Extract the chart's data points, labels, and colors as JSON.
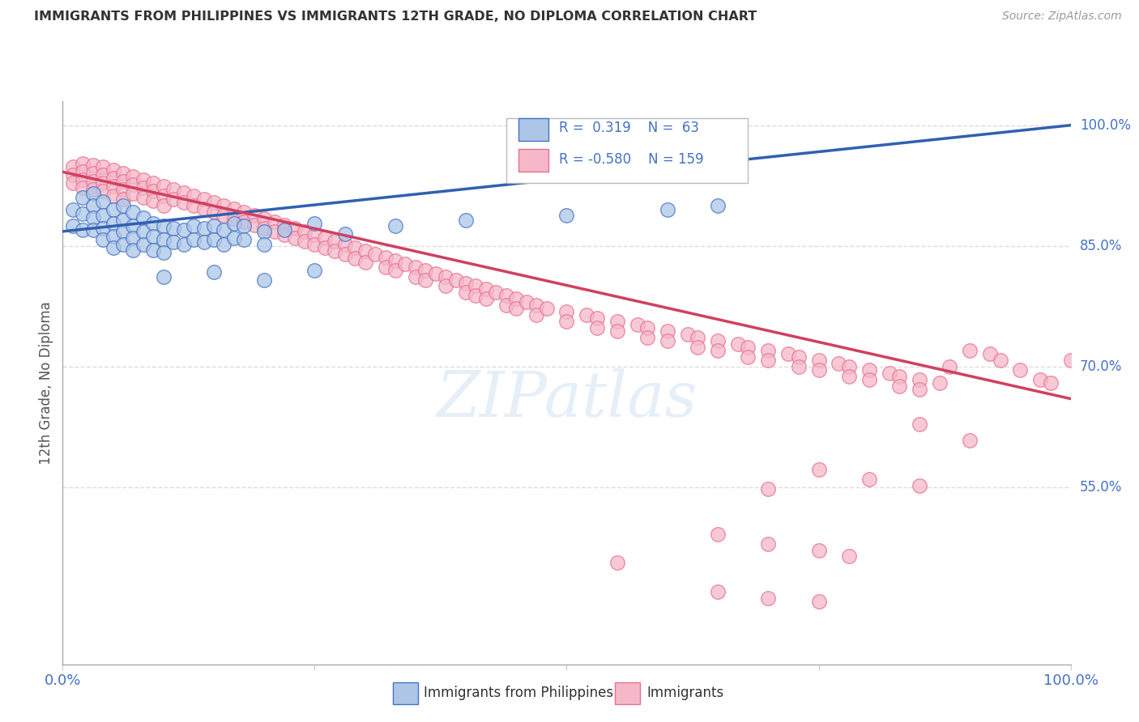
{
  "title": "IMMIGRANTS FROM PHILIPPINES VS IMMIGRANTS 12TH GRADE, NO DIPLOMA CORRELATION CHART",
  "source": "Source: ZipAtlas.com",
  "ylabel": "12th Grade, No Diploma",
  "xlim": [
    0.0,
    1.0
  ],
  "ylim": [
    0.33,
    1.03
  ],
  "right_yticks": [
    1.0,
    0.85,
    0.7,
    0.55
  ],
  "right_ytick_labels": [
    "100.0%",
    "85.0%",
    "70.0%",
    "55.0%"
  ],
  "legend_r_blue": "0.319",
  "legend_n_blue": "63",
  "legend_r_pink": "-0.580",
  "legend_n_pink": "159",
  "blue_color": "#adc6e8",
  "blue_edge_color": "#4472c4",
  "blue_line_color": "#3060b0",
  "pink_color": "#f5b8c8",
  "pink_edge_color": "#e87090",
  "pink_line_color": "#d04060",
  "background_color": "#ffffff",
  "grid_color": "#dddddd",
  "blue_scatter": [
    [
      0.01,
      0.895
    ],
    [
      0.01,
      0.875
    ],
    [
      0.02,
      0.91
    ],
    [
      0.02,
      0.89
    ],
    [
      0.02,
      0.87
    ],
    [
      0.03,
      0.915
    ],
    [
      0.03,
      0.9
    ],
    [
      0.03,
      0.885
    ],
    [
      0.03,
      0.87
    ],
    [
      0.04,
      0.905
    ],
    [
      0.04,
      0.888
    ],
    [
      0.04,
      0.872
    ],
    [
      0.04,
      0.858
    ],
    [
      0.05,
      0.895
    ],
    [
      0.05,
      0.878
    ],
    [
      0.05,
      0.862
    ],
    [
      0.05,
      0.848
    ],
    [
      0.06,
      0.9
    ],
    [
      0.06,
      0.882
    ],
    [
      0.06,
      0.868
    ],
    [
      0.06,
      0.852
    ],
    [
      0.07,
      0.892
    ],
    [
      0.07,
      0.875
    ],
    [
      0.07,
      0.86
    ],
    [
      0.07,
      0.845
    ],
    [
      0.08,
      0.885
    ],
    [
      0.08,
      0.868
    ],
    [
      0.08,
      0.852
    ],
    [
      0.09,
      0.878
    ],
    [
      0.09,
      0.862
    ],
    [
      0.09,
      0.845
    ],
    [
      0.1,
      0.875
    ],
    [
      0.1,
      0.858
    ],
    [
      0.1,
      0.842
    ],
    [
      0.11,
      0.872
    ],
    [
      0.11,
      0.855
    ],
    [
      0.12,
      0.87
    ],
    [
      0.12,
      0.852
    ],
    [
      0.13,
      0.875
    ],
    [
      0.13,
      0.858
    ],
    [
      0.14,
      0.872
    ],
    [
      0.14,
      0.855
    ],
    [
      0.15,
      0.875
    ],
    [
      0.15,
      0.858
    ],
    [
      0.16,
      0.87
    ],
    [
      0.16,
      0.852
    ],
    [
      0.17,
      0.878
    ],
    [
      0.17,
      0.86
    ],
    [
      0.18,
      0.875
    ],
    [
      0.18,
      0.858
    ],
    [
      0.2,
      0.868
    ],
    [
      0.2,
      0.852
    ],
    [
      0.22,
      0.87
    ],
    [
      0.25,
      0.878
    ],
    [
      0.28,
      0.865
    ],
    [
      0.33,
      0.875
    ],
    [
      0.4,
      0.882
    ],
    [
      0.5,
      0.888
    ],
    [
      0.6,
      0.895
    ],
    [
      0.65,
      0.9
    ],
    [
      0.15,
      0.818
    ],
    [
      0.2,
      0.808
    ],
    [
      0.1,
      0.812
    ],
    [
      0.25,
      0.82
    ]
  ],
  "pink_scatter": [
    [
      0.01,
      0.948
    ],
    [
      0.01,
      0.938
    ],
    [
      0.01,
      0.928
    ],
    [
      0.02,
      0.952
    ],
    [
      0.02,
      0.942
    ],
    [
      0.02,
      0.932
    ],
    [
      0.02,
      0.922
    ],
    [
      0.03,
      0.95
    ],
    [
      0.03,
      0.94
    ],
    [
      0.03,
      0.93
    ],
    [
      0.03,
      0.92
    ],
    [
      0.04,
      0.948
    ],
    [
      0.04,
      0.938
    ],
    [
      0.04,
      0.928
    ],
    [
      0.04,
      0.918
    ],
    [
      0.05,
      0.944
    ],
    [
      0.05,
      0.934
    ],
    [
      0.05,
      0.924
    ],
    [
      0.05,
      0.912
    ],
    [
      0.06,
      0.94
    ],
    [
      0.06,
      0.93
    ],
    [
      0.06,
      0.92
    ],
    [
      0.06,
      0.908
    ],
    [
      0.07,
      0.936
    ],
    [
      0.07,
      0.926
    ],
    [
      0.07,
      0.915
    ],
    [
      0.08,
      0.932
    ],
    [
      0.08,
      0.922
    ],
    [
      0.08,
      0.91
    ],
    [
      0.09,
      0.928
    ],
    [
      0.09,
      0.918
    ],
    [
      0.09,
      0.906
    ],
    [
      0.1,
      0.924
    ],
    [
      0.1,
      0.912
    ],
    [
      0.1,
      0.9
    ],
    [
      0.11,
      0.92
    ],
    [
      0.11,
      0.908
    ],
    [
      0.12,
      0.916
    ],
    [
      0.12,
      0.904
    ],
    [
      0.13,
      0.912
    ],
    [
      0.13,
      0.9
    ],
    [
      0.14,
      0.908
    ],
    [
      0.14,
      0.896
    ],
    [
      0.15,
      0.904
    ],
    [
      0.15,
      0.892
    ],
    [
      0.16,
      0.9
    ],
    [
      0.16,
      0.888
    ],
    [
      0.17,
      0.896
    ],
    [
      0.17,
      0.884
    ],
    [
      0.18,
      0.892
    ],
    [
      0.18,
      0.88
    ],
    [
      0.19,
      0.888
    ],
    [
      0.19,
      0.876
    ],
    [
      0.2,
      0.884
    ],
    [
      0.2,
      0.872
    ],
    [
      0.21,
      0.88
    ],
    [
      0.21,
      0.868
    ],
    [
      0.22,
      0.876
    ],
    [
      0.22,
      0.864
    ],
    [
      0.23,
      0.872
    ],
    [
      0.23,
      0.86
    ],
    [
      0.24,
      0.868
    ],
    [
      0.24,
      0.856
    ],
    [
      0.25,
      0.864
    ],
    [
      0.25,
      0.852
    ],
    [
      0.26,
      0.86
    ],
    [
      0.26,
      0.848
    ],
    [
      0.27,
      0.856
    ],
    [
      0.27,
      0.844
    ],
    [
      0.28,
      0.852
    ],
    [
      0.28,
      0.84
    ],
    [
      0.29,
      0.848
    ],
    [
      0.29,
      0.835
    ],
    [
      0.3,
      0.844
    ],
    [
      0.3,
      0.83
    ],
    [
      0.31,
      0.84
    ],
    [
      0.32,
      0.836
    ],
    [
      0.32,
      0.824
    ],
    [
      0.33,
      0.832
    ],
    [
      0.33,
      0.82
    ],
    [
      0.34,
      0.828
    ],
    [
      0.35,
      0.824
    ],
    [
      0.35,
      0.812
    ],
    [
      0.36,
      0.82
    ],
    [
      0.36,
      0.808
    ],
    [
      0.37,
      0.816
    ],
    [
      0.38,
      0.812
    ],
    [
      0.38,
      0.8
    ],
    [
      0.39,
      0.808
    ],
    [
      0.4,
      0.804
    ],
    [
      0.4,
      0.792
    ],
    [
      0.41,
      0.8
    ],
    [
      0.41,
      0.788
    ],
    [
      0.42,
      0.796
    ],
    [
      0.42,
      0.784
    ],
    [
      0.43,
      0.792
    ],
    [
      0.44,
      0.788
    ],
    [
      0.44,
      0.776
    ],
    [
      0.45,
      0.784
    ],
    [
      0.45,
      0.772
    ],
    [
      0.46,
      0.78
    ],
    [
      0.47,
      0.776
    ],
    [
      0.47,
      0.764
    ],
    [
      0.48,
      0.772
    ],
    [
      0.5,
      0.768
    ],
    [
      0.5,
      0.756
    ],
    [
      0.52,
      0.764
    ],
    [
      0.53,
      0.76
    ],
    [
      0.53,
      0.748
    ],
    [
      0.55,
      0.756
    ],
    [
      0.55,
      0.744
    ],
    [
      0.57,
      0.752
    ],
    [
      0.58,
      0.748
    ],
    [
      0.58,
      0.736
    ],
    [
      0.6,
      0.744
    ],
    [
      0.6,
      0.732
    ],
    [
      0.62,
      0.74
    ],
    [
      0.63,
      0.736
    ],
    [
      0.63,
      0.724
    ],
    [
      0.65,
      0.732
    ],
    [
      0.65,
      0.72
    ],
    [
      0.67,
      0.728
    ],
    [
      0.68,
      0.724
    ],
    [
      0.68,
      0.712
    ],
    [
      0.7,
      0.72
    ],
    [
      0.7,
      0.708
    ],
    [
      0.72,
      0.716
    ],
    [
      0.73,
      0.712
    ],
    [
      0.73,
      0.7
    ],
    [
      0.75,
      0.708
    ],
    [
      0.75,
      0.696
    ],
    [
      0.77,
      0.704
    ],
    [
      0.78,
      0.7
    ],
    [
      0.78,
      0.688
    ],
    [
      0.8,
      0.696
    ],
    [
      0.8,
      0.684
    ],
    [
      0.82,
      0.692
    ],
    [
      0.83,
      0.688
    ],
    [
      0.83,
      0.676
    ],
    [
      0.85,
      0.684
    ],
    [
      0.85,
      0.672
    ],
    [
      0.87,
      0.68
    ],
    [
      0.88,
      0.7
    ],
    [
      0.9,
      0.72
    ],
    [
      0.92,
      0.716
    ],
    [
      0.93,
      0.708
    ],
    [
      0.95,
      0.696
    ],
    [
      0.97,
      0.684
    ],
    [
      0.98,
      0.68
    ],
    [
      1.0,
      0.708
    ],
    [
      0.85,
      0.628
    ],
    [
      0.9,
      0.608
    ],
    [
      0.75,
      0.572
    ],
    [
      0.8,
      0.56
    ],
    [
      0.85,
      0.552
    ],
    [
      0.7,
      0.548
    ],
    [
      0.65,
      0.492
    ],
    [
      0.7,
      0.48
    ],
    [
      0.75,
      0.472
    ],
    [
      0.78,
      0.464
    ],
    [
      0.55,
      0.456
    ],
    [
      0.65,
      0.42
    ],
    [
      0.7,
      0.412
    ],
    [
      0.75,
      0.408
    ]
  ],
  "blue_line_x": [
    0.0,
    1.0
  ],
  "blue_line_y": [
    0.868,
    1.0
  ],
  "pink_line_x": [
    0.0,
    1.0
  ],
  "pink_line_y": [
    0.942,
    0.66
  ]
}
